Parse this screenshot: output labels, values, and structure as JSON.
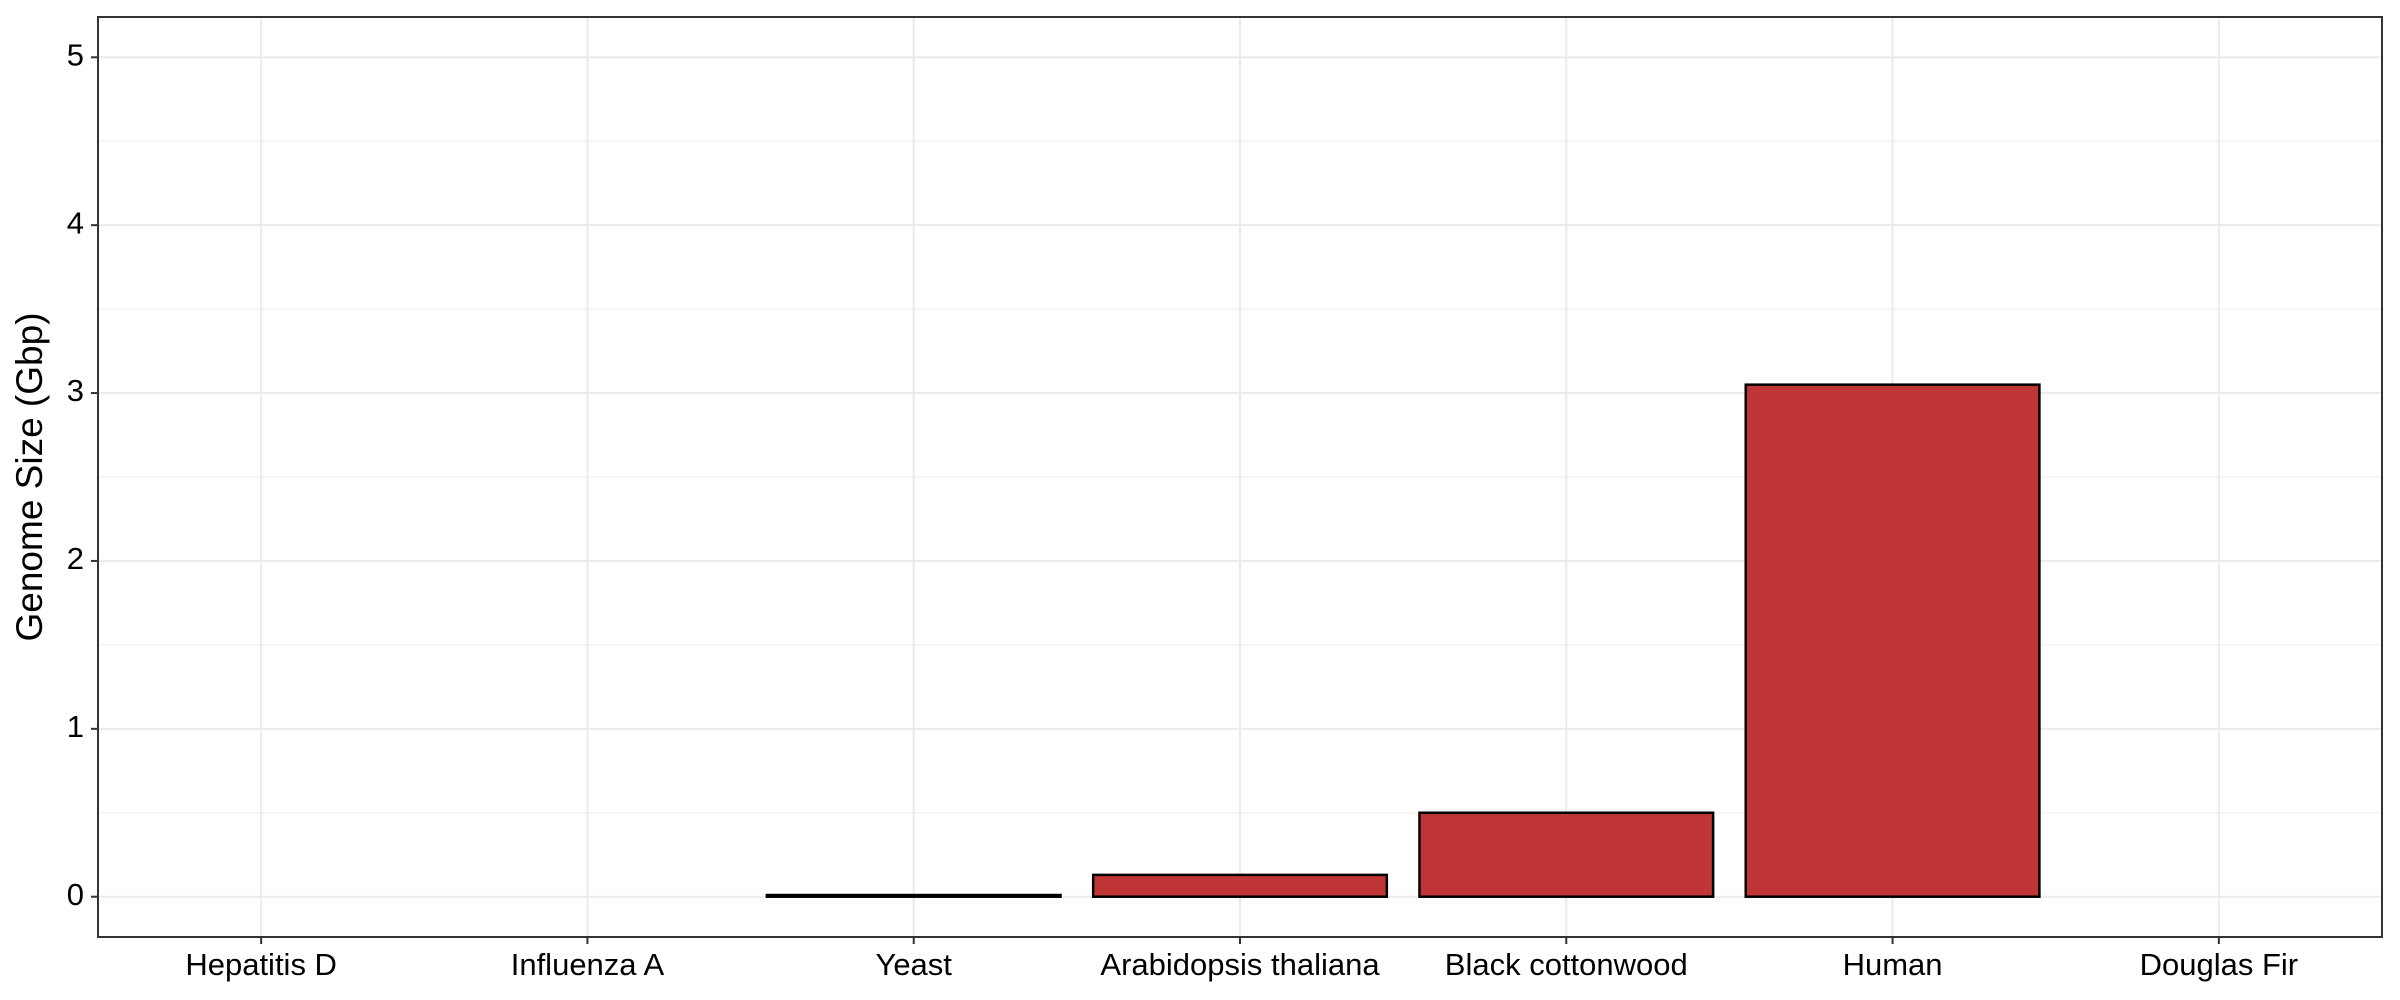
{
  "chart_data": {
    "type": "bar",
    "y_label": "Genome Size (Gbp)",
    "categories": [
      "Hepatitis D",
      "Influenza A",
      "Yeast",
      "Arabidopsis thaliana",
      "Black cottonwood",
      "Human",
      "Douglas Fir"
    ],
    "values": [
      0,
      0,
      0.01,
      0.13,
      0.5,
      3.05,
      null
    ],
    "color": "#c03636",
    "ylim": [
      -0.24,
      5.24
    ],
    "yticks": [
      0,
      1,
      2,
      3,
      4,
      5
    ],
    "grid": true
  }
}
